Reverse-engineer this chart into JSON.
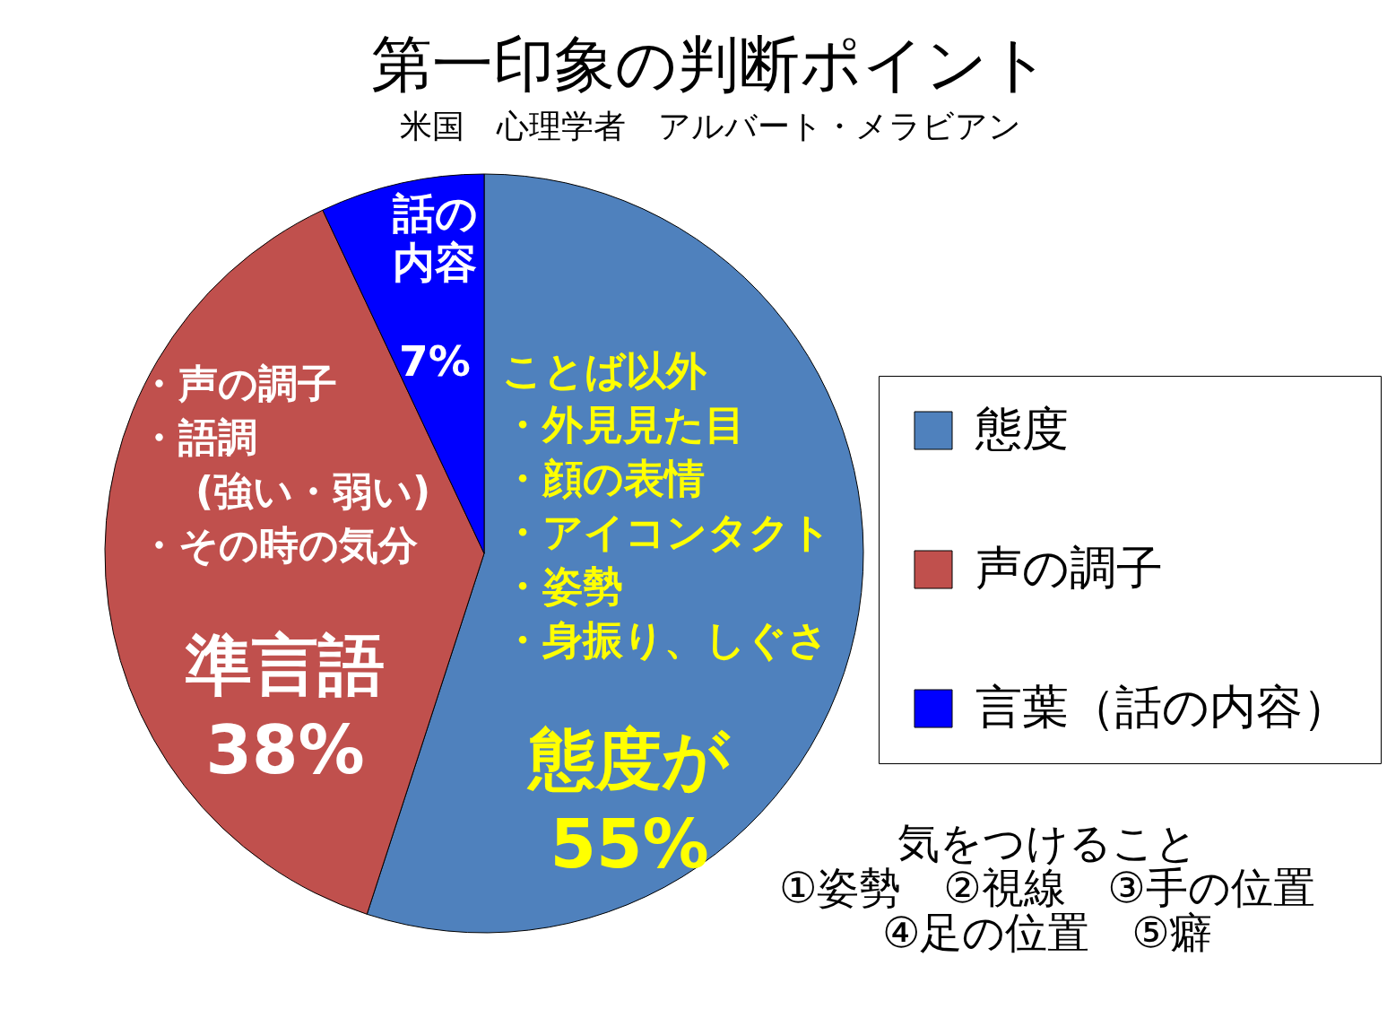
{
  "chart_data": {
    "type": "pie",
    "title": "第一印象の判断ポイント",
    "subtitle": "米国　心理学者　アルバート・メラビアン",
    "categories": [
      "態度",
      "声の調子",
      "言葉（話の内容）"
    ],
    "values": [
      55,
      38,
      7
    ],
    "colors": [
      "#4f81bd",
      "#c0504d",
      "#0000ff"
    ],
    "value_labels": [
      "態度が\n55%",
      "準言語\n38%",
      "話の内容\n7%"
    ],
    "legend": "right",
    "annotations": [
      "ことば以外",
      "・外見見た目",
      "・顔の表情",
      "・アイコンタクト",
      "・姿勢",
      "・身振り、しぐさ",
      "・声の調子",
      "・語調",
      "(強い・弱い)",
      "・その時の気分",
      "気をつけること\n①姿勢　②視線　③手の位置\n④足の位置　⑤癖"
    ]
  }
}
